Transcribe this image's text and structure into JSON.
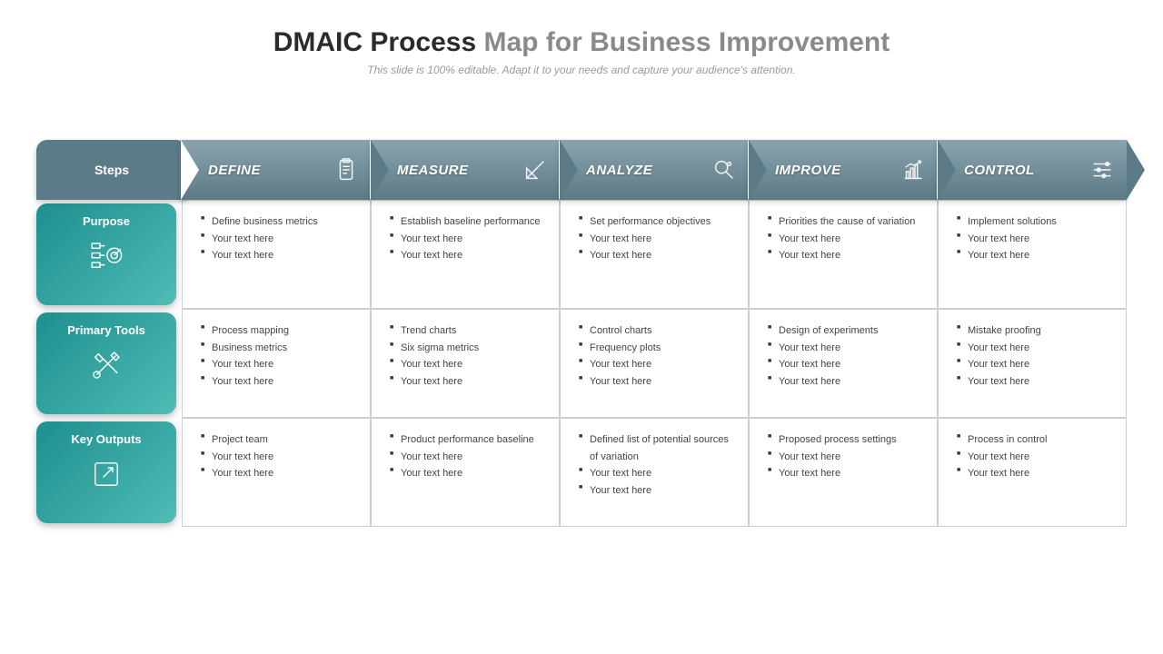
{
  "title": {
    "bold": "DMAIC Process",
    "light": " Map for Business Improvement"
  },
  "subtitle": "This slide is 100% editable. Adapt it to your needs and capture your audience's attention.",
  "colors": {
    "chevron_gradient_top": "#8aa4ae",
    "chevron_gradient_bottom": "#5c7a85",
    "rowlabel_gradient_a": "#1e8f8f",
    "rowlabel_gradient_b": "#4fbcb5",
    "border": "#cfcfcf",
    "bullet": "#333333",
    "title_bold": "#2b2b2b",
    "title_light": "#8a8a8a"
  },
  "steps_label": "Steps",
  "columns": [
    {
      "label": "DEFINE",
      "icon": "clipboard-icon"
    },
    {
      "label": "MEASURE",
      "icon": "ruler-icon"
    },
    {
      "label": "ANALYZE",
      "icon": "magnifier-icon"
    },
    {
      "label": "IMPROVE",
      "icon": "barchart-icon"
    },
    {
      "label": "CONTROL",
      "icon": "sliders-icon"
    }
  ],
  "rows": [
    {
      "label": "Purpose",
      "icon": "target-icon",
      "cells": [
        [
          "Define business metrics",
          "Your text here",
          "Your text here"
        ],
        [
          "Establish baseline performance",
          "Your text here",
          "Your text here"
        ],
        [
          "Set performance objectives",
          "Your text here",
          "Your text here"
        ],
        [
          "Priorities the cause of variation",
          "Your text here",
          "Your text here"
        ],
        [
          "Implement solutions",
          "Your text here",
          "Your text here"
        ]
      ]
    },
    {
      "label": "Primary Tools",
      "icon": "tools-icon",
      "cells": [
        [
          "Process mapping",
          "Business metrics",
          "Your text here",
          "Your text here"
        ],
        [
          "Trend  charts",
          "Six sigma metrics",
          "Your text here",
          "Your text here"
        ],
        [
          "Control charts",
          "Frequency plots",
          "Your text here",
          "Your text here"
        ],
        [
          "Design of experiments",
          "Your text here",
          "Your text here",
          "Your text here"
        ],
        [
          "Mistake proofing",
          "Your text here",
          "Your text here",
          "Your text here"
        ]
      ]
    },
    {
      "label": "Key Outputs",
      "icon": "export-icon",
      "cells": [
        [
          "Project team",
          "Your text here",
          "Your text here"
        ],
        [
          "Product performance baseline",
          "Your text here",
          "Your text here"
        ],
        [
          "Defined list of potential sources of variation",
          "Your text here",
          "Your text here"
        ],
        [
          "Proposed process settings",
          "Your text here",
          "Your text here"
        ],
        [
          "Process in control",
          "Your text here",
          "Your text here"
        ]
      ]
    }
  ]
}
